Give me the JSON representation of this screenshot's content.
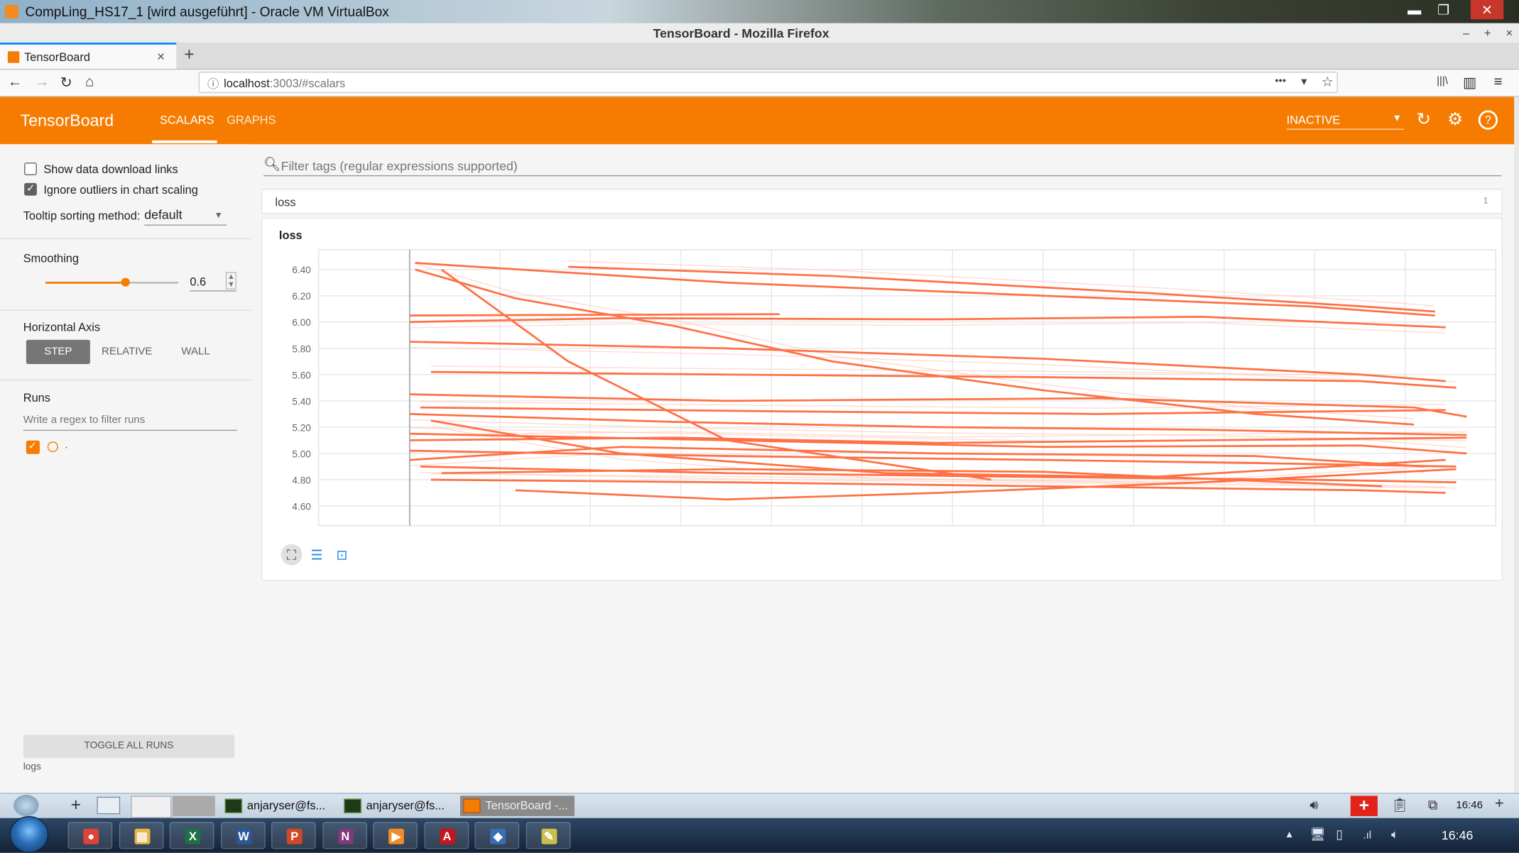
{
  "vbox": {
    "title": "CompLing_HS17_1 [wird ausgeführt] - Oracle VM VirtualBox",
    "minimize": "▬",
    "restore": "❐",
    "close": "✕"
  },
  "firefox": {
    "window_title": "TensorBoard - Mozilla Firefox",
    "window_controls": "– + ×",
    "tab_label": "TensorBoard",
    "tab_close": "×",
    "new_tab": "+",
    "url_host": "localhost",
    "url_path": ":3003/#scalars",
    "page_actions": "•••",
    "nav": {
      "back": "←",
      "forward": "→",
      "reload": "↻",
      "home": "⌂",
      "library": "|||\\",
      "sidebar": "▥",
      "menu": "≡",
      "pocket": "▾",
      "star": "☆",
      "info": "ⓘ"
    }
  },
  "tensorboard": {
    "brand": "TensorBoard",
    "tabs": [
      "SCALARS",
      "GRAPHS"
    ],
    "active_tab": "SCALARS",
    "status": "INACTIVE",
    "icons": {
      "refresh": "↻",
      "settings": "⚙",
      "help": "?"
    }
  },
  "sidebar": {
    "show_download_links": "Show data download links",
    "show_download_links_checked": false,
    "ignore_outliers": "Ignore outliers in chart scaling",
    "ignore_outliers_checked": true,
    "tooltip_sorting_label": "Tooltip sorting method:",
    "tooltip_sorting_value": "default",
    "smoothing_label": "Smoothing",
    "smoothing_value": "0.6",
    "smoothing_level": 0.6,
    "horizontal_axis_label": "Horizontal Axis",
    "axis_options": [
      "STEP",
      "RELATIVE",
      "WALL"
    ],
    "axis_selected": "STEP",
    "runs_label": "Runs",
    "runs_filter_placeholder": "Write a regex to filter runs",
    "run_name": ".",
    "toggle_all_runs": "TOGGLE ALL RUNS",
    "logdir": "logs"
  },
  "main": {
    "filter_placeholder": "Filter tags (regular expressions supported)",
    "category_name": "loss",
    "category_count": "1",
    "card_title": "loss"
  },
  "chart_data": {
    "type": "line",
    "title": "loss",
    "ylabel": "",
    "xlabel": "",
    "y_ticks": [
      "6.40",
      "6.20",
      "6.00",
      "5.80",
      "5.60",
      "5.40",
      "5.20",
      "5.00",
      "4.80",
      "4.60"
    ],
    "ylim": [
      4.45,
      6.55
    ],
    "x_ticks": [],
    "grid": true,
    "color": "#ff7043",
    "raw_color": "#ffccbc",
    "smoothing": 0.6,
    "series": [
      {
        "x": [
          0.005,
          0.1,
          0.25,
          0.4,
          0.6,
          0.8,
          0.95
        ],
        "y": [
          6.4,
          6.18,
          5.97,
          5.7,
          5.48,
          5.3,
          5.22
        ]
      },
      {
        "x": [
          0.005,
          0.3,
          0.6,
          0.85,
          0.97
        ],
        "y": [
          6.45,
          6.3,
          6.2,
          6.12,
          6.05
        ]
      },
      {
        "x": [
          0.0,
          0.2,
          0.5,
          0.75,
          0.98
        ],
        "y": [
          6.0,
          6.03,
          6.02,
          6.04,
          5.96
        ]
      },
      {
        "x": [
          0.15,
          0.4,
          0.7,
          0.9,
          0.97
        ],
        "y": [
          6.42,
          6.35,
          6.22,
          6.12,
          6.08
        ]
      },
      {
        "x": [
          0.0,
          0.35
        ],
        "y": [
          6.05,
          6.06
        ]
      },
      {
        "x": [
          0.0,
          0.3,
          0.6,
          0.9,
          0.98
        ],
        "y": [
          5.85,
          5.8,
          5.72,
          5.6,
          5.55
        ]
      },
      {
        "x": [
          0.02,
          0.3,
          0.6,
          0.9,
          0.99
        ],
        "y": [
          5.62,
          5.6,
          5.58,
          5.55,
          5.5
        ]
      },
      {
        "x": [
          0.0,
          0.3,
          0.65,
          0.95,
          1.0
        ],
        "y": [
          5.45,
          5.4,
          5.42,
          5.35,
          5.28
        ]
      },
      {
        "x": [
          0.0,
          0.25,
          0.5,
          0.75,
          1.0
        ],
        "y": [
          5.3,
          5.24,
          5.2,
          5.18,
          5.14
        ]
      },
      {
        "x": [
          0.0,
          0.3,
          0.6,
          0.9,
          1.0
        ],
        "y": [
          5.15,
          5.1,
          5.05,
          5.06,
          5.0
        ]
      },
      {
        "x": [
          0.0,
          0.3,
          0.6,
          0.85,
          0.99
        ],
        "y": [
          5.02,
          4.98,
          4.95,
          4.92,
          4.9
        ]
      },
      {
        "x": [
          0.01,
          0.3,
          0.6,
          0.85,
          0.99
        ],
        "y": [
          4.9,
          4.85,
          4.82,
          4.8,
          4.78
        ]
      },
      {
        "x": [
          0.02,
          0.3,
          0.6,
          0.9,
          0.98
        ],
        "y": [
          4.8,
          4.78,
          4.75,
          4.72,
          4.7
        ]
      },
      {
        "x": [
          0.1,
          0.3,
          0.5,
          0.75,
          0.99
        ],
        "y": [
          4.72,
          4.65,
          4.7,
          4.78,
          4.88
        ]
      },
      {
        "x": [
          0.02,
          0.2,
          0.45,
          0.7,
          0.98
        ],
        "y": [
          5.25,
          5.0,
          4.85,
          4.82,
          4.95
        ]
      },
      {
        "x": [
          0.0,
          0.25,
          0.5,
          0.75,
          1.0
        ],
        "y": [
          5.1,
          5.12,
          5.08,
          5.1,
          5.12
        ]
      },
      {
        "x": [
          0.03,
          0.15,
          0.3,
          0.55
        ],
        "y": [
          6.4,
          5.7,
          5.1,
          4.8
        ]
      },
      {
        "x": [
          0.0,
          0.2,
          0.5,
          0.8,
          0.96
        ],
        "y": [
          4.95,
          5.05,
          5.0,
          4.98,
          4.9
        ]
      },
      {
        "x": [
          0.01,
          0.35,
          0.65,
          0.98
        ],
        "y": [
          5.35,
          5.32,
          5.3,
          5.33
        ]
      },
      {
        "x": [
          0.03,
          0.3,
          0.6,
          0.92
        ],
        "y": [
          4.85,
          4.88,
          4.86,
          4.75
        ]
      }
    ]
  },
  "vbox_status": {
    "tasks": [
      "anjaryser@fs...",
      "anjaryser@fs...",
      "TensorBoard -..."
    ],
    "time": "16:46"
  },
  "windows": {
    "apps": [
      "Chrome",
      "Explorer",
      "Excel",
      "Word",
      "PowerPoint",
      "OneNote",
      "Media Player",
      "Acrobat",
      "VirtualBox",
      "Notepad"
    ],
    "app_glyphs": [
      "●",
      "▤",
      "X",
      "W",
      "P",
      "N",
      "▶",
      "A",
      "◆",
      "✎"
    ],
    "app_colors": [
      "#db4437",
      "#e8b64a",
      "#1e7145",
      "#2b579a",
      "#d24726",
      "#80397b",
      "#f28c28",
      "#c4161c",
      "#3c6eb4",
      "#c8c04a"
    ],
    "time": "16:46"
  }
}
